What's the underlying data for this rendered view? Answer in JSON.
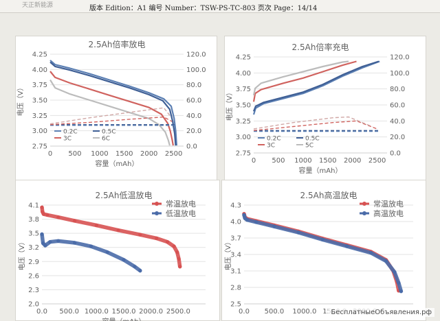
{
  "document": {
    "header": "版本 Edition：A1 编号 Number：TSW-PS-TC-803 页次 Page：14/14",
    "company": "天正新能源"
  },
  "watermark": "БесплатныеОбъявления.рф",
  "chart_data": [
    {
      "id": "c1",
      "type": "line",
      "title": "2.5Ah倍率放电",
      "xlabel": "容量（mAh）",
      "ylabel": "电压（V）",
      "xlim": [
        0,
        2700
      ],
      "ylim": [
        2.75,
        4.25
      ],
      "y2lim": [
        0,
        120
      ],
      "xticks": [
        "0",
        "500",
        "1000",
        "1500",
        "2000",
        "2500"
      ],
      "yticks": [
        "2.75",
        "3.00",
        "3.25",
        "3.50",
        "3.75",
        "4.00",
        "4.25"
      ],
      "y2ticks": [
        "0.0",
        "20.0",
        "40.0",
        "60.0",
        "80.0",
        "100.0",
        "120.0"
      ],
      "legend": [
        "0.2C",
        "0.5C",
        "3C",
        "6C"
      ],
      "legend_position": "bottom-left",
      "series": [
        {
          "name": "0.2C",
          "color": "#5b7fb3",
          "axis": "y",
          "x": [
            0,
            100,
            400,
            800,
            1200,
            1600,
            2000,
            2300,
            2450,
            2510,
            2540,
            2560
          ],
          "y": [
            4.15,
            4.08,
            4.02,
            3.93,
            3.83,
            3.73,
            3.62,
            3.52,
            3.4,
            3.2,
            3.0,
            2.76
          ]
        },
        {
          "name": "0.5C",
          "color": "#3f5f95",
          "axis": "y",
          "x": [
            0,
            100,
            400,
            800,
            1200,
            1600,
            2000,
            2280,
            2420,
            2480,
            2520,
            2540
          ],
          "y": [
            4.12,
            4.05,
            3.99,
            3.9,
            3.8,
            3.7,
            3.59,
            3.49,
            3.35,
            3.15,
            2.95,
            2.76
          ]
        },
        {
          "name": "3C",
          "color": "#d0625e",
          "axis": "y",
          "x": [
            0,
            100,
            400,
            800,
            1200,
            1600,
            2000,
            2250,
            2380,
            2430,
            2470,
            2490
          ],
          "y": [
            3.97,
            3.87,
            3.78,
            3.68,
            3.58,
            3.48,
            3.38,
            3.27,
            3.12,
            3.0,
            2.85,
            2.76
          ]
        },
        {
          "name": "6C",
          "color": "#bcbcbc",
          "axis": "y",
          "x": [
            0,
            100,
            400,
            800,
            1200,
            1600,
            2000,
            2200,
            2330,
            2390,
            2420
          ],
          "y": [
            3.83,
            3.7,
            3.6,
            3.5,
            3.4,
            3.3,
            3.2,
            3.1,
            2.98,
            2.85,
            2.76
          ]
        },
        {
          "name": "",
          "color": "#5b7fb3",
          "axis": "y2",
          "dashed": true,
          "x": [
            0,
            2540
          ],
          "y": [
            27,
            27
          ]
        },
        {
          "name": "",
          "color": "#3f5f95",
          "axis": "y2",
          "dashed": true,
          "x": [
            0,
            2520
          ],
          "y": [
            28,
            28
          ]
        },
        {
          "name": "",
          "color": "#d0625e",
          "axis": "y2",
          "dashed": true,
          "x": [
            0,
            800,
            1600,
            2300,
            2470
          ],
          "y": [
            28,
            31,
            35,
            38,
            32
          ]
        },
        {
          "name": "",
          "color": "#d0a7a5",
          "axis": "y2",
          "dashed": true,
          "x": [
            0,
            800,
            1600,
            2300,
            2420
          ],
          "y": [
            29,
            37,
            44,
            50,
            40
          ]
        }
      ]
    },
    {
      "id": "c2",
      "type": "line",
      "title": "2.5Ah倍率充电",
      "xlabel": "容量（mAh）",
      "ylabel": "电压（V）",
      "xlim": [
        0,
        2700
      ],
      "ylim": [
        2.75,
        4.25
      ],
      "y2lim": [
        0,
        120
      ],
      "xticks": [
        "0",
        "500",
        "1000",
        "1500",
        "2000",
        "2500"
      ],
      "yticks": [
        "2.75",
        "3.00",
        "3.25",
        "3.50",
        "3.75",
        "4.00",
        "4.25"
      ],
      "y2ticks": [
        "0.0",
        "20.0",
        "40.0",
        "60.0",
        "80.0",
        "100.0",
        "120.0"
      ],
      "legend": [
        "0.2C",
        "0.5C",
        "3C",
        "5C"
      ],
      "legend_position": "bottom-left",
      "series": [
        {
          "name": "0.2C",
          "color": "#5b7fb3",
          "axis": "y",
          "x": [
            0,
            40,
            200,
            600,
            1000,
            1400,
            1800,
            2200,
            2550
          ],
          "y": [
            3.35,
            3.45,
            3.52,
            3.6,
            3.68,
            3.8,
            3.95,
            4.08,
            4.18
          ]
        },
        {
          "name": "0.5C",
          "color": "#3f5f95",
          "axis": "y",
          "x": [
            0,
            40,
            200,
            600,
            1000,
            1400,
            1800,
            2200,
            2530
          ],
          "y": [
            3.4,
            3.48,
            3.54,
            3.62,
            3.7,
            3.82,
            3.97,
            4.1,
            4.18
          ]
        },
        {
          "name": "3C",
          "color": "#d0625e",
          "axis": "y",
          "x": [
            0,
            30,
            150,
            600,
            1000,
            1400,
            1800,
            2080
          ],
          "y": [
            3.55,
            3.68,
            3.74,
            3.84,
            3.92,
            4.02,
            4.12,
            4.18
          ]
        },
        {
          "name": "5C",
          "color": "#bcbcbc",
          "axis": "y",
          "x": [
            0,
            30,
            150,
            600,
            1000,
            1400,
            1800,
            1920
          ],
          "y": [
            3.65,
            3.76,
            3.84,
            3.94,
            4.02,
            4.1,
            4.17,
            4.18
          ]
        },
        {
          "name": "",
          "color": "#5b7fb3",
          "axis": "y2",
          "dashed": true,
          "x": [
            0,
            2550
          ],
          "y": [
            27,
            27
          ]
        },
        {
          "name": "",
          "color": "#3f5f95",
          "axis": "y2",
          "dashed": true,
          "x": [
            0,
            2530
          ],
          "y": [
            28,
            28
          ]
        },
        {
          "name": "",
          "color": "#d0625e",
          "axis": "y2",
          "dashed": true,
          "x": [
            0,
            800,
            1600,
            2080,
            2500
          ],
          "y": [
            28,
            33,
            38,
            40,
            30
          ]
        },
        {
          "name": "",
          "color": "#d0a7a5",
          "axis": "y2",
          "dashed": true,
          "x": [
            0,
            800,
            1600,
            1920,
            2400
          ],
          "y": [
            30,
            38,
            44,
            45,
            33
          ]
        }
      ]
    },
    {
      "id": "c3",
      "type": "scatter",
      "title": "2.5Ah低温放电",
      "xlabel": "容量（mAh）",
      "ylabel": "电压（V）",
      "xlim": [
        0,
        3000
      ],
      "ylim": [
        2.0,
        4.2
      ],
      "xticks": [
        "0.0",
        "500.0",
        "1000.0",
        "1500.0",
        "2000.0",
        "2500.0"
      ],
      "yticks": [
        "2.0",
        "2.3",
        "2.6",
        "2.9",
        "3.2",
        "3.5",
        "3.8",
        "4.1"
      ],
      "legend": [
        "常温放电",
        "低温放电"
      ],
      "legend_position": "top-right",
      "series": [
        {
          "name": "常温放电",
          "color": "#d75252",
          "x": [
            0,
            10,
            30,
            100,
            300,
            600,
            1000,
            1400,
            1800,
            2100,
            2300,
            2420,
            2480,
            2510,
            2530
          ],
          "y": [
            4.15,
            4.05,
            4.0,
            3.98,
            3.93,
            3.85,
            3.75,
            3.64,
            3.54,
            3.46,
            3.38,
            3.28,
            3.15,
            3.0,
            2.83
          ]
        },
        {
          "name": "低温放电",
          "color": "#4a6ba8",
          "x": [
            0,
            20,
            60,
            150,
            300,
            600,
            900,
            1200,
            1500,
            1700,
            1800
          ],
          "y": [
            3.55,
            3.35,
            3.3,
            3.38,
            3.4,
            3.36,
            3.28,
            3.15,
            2.98,
            2.83,
            2.74
          ]
        }
      ]
    },
    {
      "id": "c4",
      "type": "scatter",
      "title": "2.5Ah高温放电",
      "xlabel": "",
      "ylabel": "电压（V）",
      "xlim": [
        0,
        2800
      ],
      "ylim": [
        2.5,
        4.3
      ],
      "xticks": [
        "0.0",
        "500.0",
        "1000.0",
        "1500.0",
        "2000.0"
      ],
      "yticks": [
        "2.5",
        "2.8",
        "3.1",
        "3.4",
        "3.7",
        "4.0",
        "4.3"
      ],
      "legend": [
        "常温放电",
        "高温放电"
      ],
      "legend_position": "top-right",
      "series": [
        {
          "name": "常温放电",
          "color": "#d75252",
          "x": [
            0,
            15,
            50,
            200,
            500,
            900,
            1300,
            1700,
            2100,
            2350,
            2470,
            2530,
            2560
          ],
          "y": [
            4.14,
            4.08,
            4.05,
            4.01,
            3.93,
            3.82,
            3.69,
            3.57,
            3.45,
            3.3,
            3.1,
            2.9,
            2.74
          ]
        },
        {
          "name": "高温放电",
          "color": "#4a6ba8",
          "x": [
            0,
            15,
            50,
            200,
            500,
            900,
            1300,
            1700,
            2100,
            2350,
            2490,
            2560,
            2600
          ],
          "y": [
            4.12,
            4.06,
            4.03,
            3.99,
            3.91,
            3.8,
            3.67,
            3.55,
            3.43,
            3.28,
            3.08,
            2.88,
            2.73
          ]
        }
      ]
    }
  ]
}
